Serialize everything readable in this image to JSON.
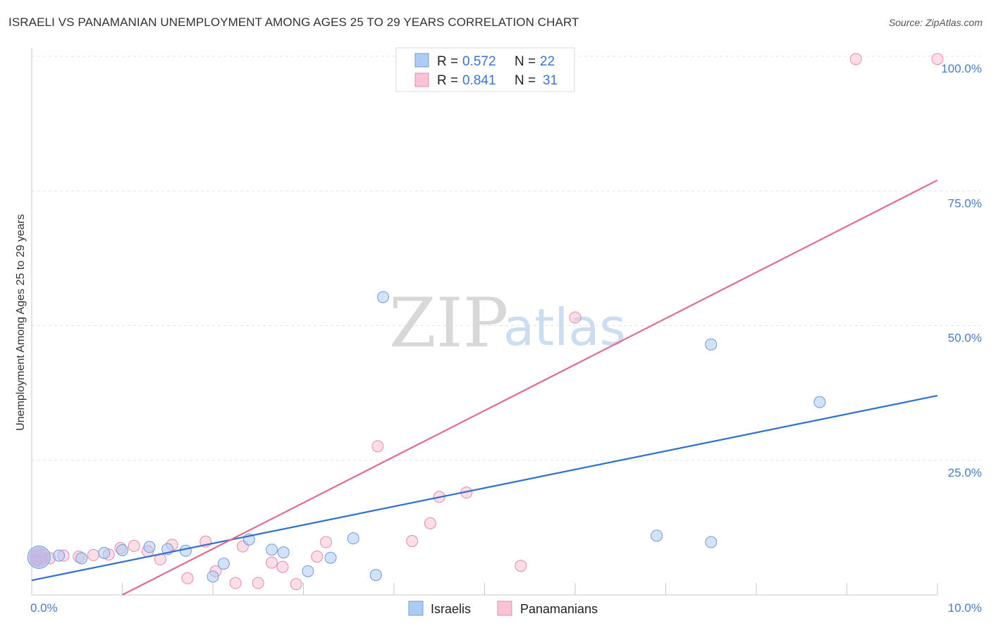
{
  "header": {
    "title": "ISRAELI VS PANAMANIAN UNEMPLOYMENT AMONG AGES 25 TO 29 YEARS CORRELATION CHART",
    "source": "Source: ZipAtlas.com"
  },
  "watermark": {
    "zip": "ZIP",
    "atlas": "atlas"
  },
  "legend": {
    "rows": [
      {
        "r_label": "R =",
        "r_value": "0.572",
        "n_label": "N =",
        "n_value": "22",
        "color": "#aecbf2",
        "stroke": "#6e9bd8"
      },
      {
        "r_label": "R =",
        "r_value": "0.841",
        "n_label": "N =",
        "n_value": "31",
        "color": "#f8c3d3",
        "stroke": "#e98aa8"
      }
    ]
  },
  "colors": {
    "israeli_fill": "#aecbf2",
    "israeli_stroke": "#6e9bd8",
    "israeli_line": "#2f6fd0",
    "panamanian_fill": "#f8c3d3",
    "panamanian_stroke": "#e98aa8",
    "panamanian_line": "#e06a93",
    "grid": "#e3e3e3",
    "tick": "#4a7cc9"
  },
  "chart_data": {
    "type": "scatter",
    "title": "ISRAELI VS PANAMANIAN UNEMPLOYMENT AMONG AGES 25 TO 29 YEARS CORRELATION CHART",
    "xlabel": "",
    "ylabel": "Unemployment Among Ages 25 to 29 years",
    "xlim": [
      0,
      10
    ],
    "ylim": [
      0,
      100
    ],
    "x_tick_labels": [
      {
        "value": 0,
        "label": "0.0%"
      },
      {
        "value": 10,
        "label": "10.0%"
      }
    ],
    "y_tick_labels": [
      {
        "value": 25,
        "label": "25.0%"
      },
      {
        "value": 50,
        "label": "50.0%"
      },
      {
        "value": 75,
        "label": "75.0%"
      },
      {
        "value": 100,
        "label": "100.0%"
      }
    ],
    "series": [
      {
        "name": "Israelis",
        "points": [
          {
            "x": 0.08,
            "y": 7.0,
            "big": true
          },
          {
            "x": 0.3,
            "y": 7.3
          },
          {
            "x": 0.55,
            "y": 6.8
          },
          {
            "x": 0.8,
            "y": 7.8
          },
          {
            "x": 1.0,
            "y": 8.3
          },
          {
            "x": 1.3,
            "y": 8.9
          },
          {
            "x": 1.5,
            "y": 8.5
          },
          {
            "x": 1.7,
            "y": 8.2
          },
          {
            "x": 2.0,
            "y": 3.4
          },
          {
            "x": 2.12,
            "y": 5.8
          },
          {
            "x": 2.4,
            "y": 10.3
          },
          {
            "x": 2.65,
            "y": 8.4
          },
          {
            "x": 2.78,
            "y": 7.9
          },
          {
            "x": 3.05,
            "y": 4.4
          },
          {
            "x": 3.3,
            "y": 6.9
          },
          {
            "x": 3.55,
            "y": 10.5
          },
          {
            "x": 3.8,
            "y": 3.7
          },
          {
            "x": 3.88,
            "y": 55.3
          },
          {
            "x": 7.5,
            "y": 9.8
          },
          {
            "x": 7.5,
            "y": 46.5
          },
          {
            "x": 8.7,
            "y": 35.8
          },
          {
            "x": 6.9,
            "y": 11.0
          }
        ],
        "trend": {
          "x0": 0,
          "y0": 2.7,
          "x1": 10,
          "y1": 37.0
        }
      },
      {
        "name": "Panamanians",
        "points": [
          {
            "x": 0.2,
            "y": 6.8
          },
          {
            "x": 0.35,
            "y": 7.3
          },
          {
            "x": 0.52,
            "y": 7.1
          },
          {
            "x": 0.68,
            "y": 7.4
          },
          {
            "x": 0.85,
            "y": 7.5
          },
          {
            "x": 0.98,
            "y": 8.7
          },
          {
            "x": 1.13,
            "y": 9.1
          },
          {
            "x": 1.28,
            "y": 8.1
          },
          {
            "x": 1.42,
            "y": 6.6
          },
          {
            "x": 1.55,
            "y": 9.3
          },
          {
            "x": 1.72,
            "y": 3.1
          },
          {
            "x": 1.92,
            "y": 9.9
          },
          {
            "x": 2.03,
            "y": 4.4
          },
          {
            "x": 2.25,
            "y": 2.2
          },
          {
            "x": 2.33,
            "y": 9.0
          },
          {
            "x": 2.5,
            "y": 2.2
          },
          {
            "x": 2.65,
            "y": 6.0
          },
          {
            "x": 2.77,
            "y": 5.2
          },
          {
            "x": 2.92,
            "y": 2.0
          },
          {
            "x": 3.15,
            "y": 7.1
          },
          {
            "x": 3.25,
            "y": 9.8
          },
          {
            "x": 3.82,
            "y": 27.6
          },
          {
            "x": 4.2,
            "y": 10.0
          },
          {
            "x": 4.4,
            "y": 13.3
          },
          {
            "x": 4.5,
            "y": 18.2
          },
          {
            "x": 4.8,
            "y": 19.0
          },
          {
            "x": 5.4,
            "y": 5.4
          },
          {
            "x": 6.0,
            "y": 51.5
          },
          {
            "x": 9.1,
            "y": 99.5
          },
          {
            "x": 10.0,
            "y": 99.5
          },
          {
            "x": 0.05,
            "y": 6.4
          }
        ],
        "trend": {
          "x0": 1.0,
          "y0": 0.0,
          "x1": 10,
          "y1": 77.0
        }
      }
    ],
    "legend_placement": "bottom-center"
  },
  "bottom_legend": [
    {
      "label": "Israelis"
    },
    {
      "label": "Panamanians"
    }
  ]
}
